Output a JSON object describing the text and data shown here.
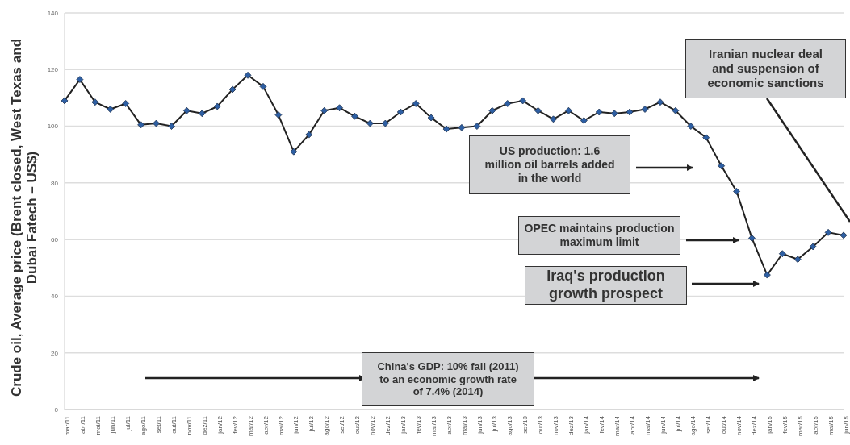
{
  "chart_data": {
    "type": "line",
    "ylabel": "Crude oil, Average price (Brent closed, West Texas and Dubai Fatech – US$)",
    "categories": [
      "mar/11",
      "abr/11",
      "mai/11",
      "jun/11",
      "jul/11",
      "ago/11",
      "set/11",
      "out/11",
      "nov/11",
      "dez/11",
      "jan/12",
      "fev/12",
      "mar/12",
      "abr/12",
      "mai/12",
      "jun/12",
      "jul/12",
      "ago/12",
      "set/12",
      "out/12",
      "nov/12",
      "dez/12",
      "jan/13",
      "fev/13",
      "mar/13",
      "abr/13",
      "mai/13",
      "jun/13",
      "jul/13",
      "ago/13",
      "set/13",
      "out/13",
      "nov/13",
      "dez/13",
      "jan/14",
      "fev/14",
      "mar/14",
      "abr/14",
      "mai/14",
      "jun/14",
      "jul/14",
      "ago/14",
      "set/14",
      "out/14",
      "nov/14",
      "dez/14",
      "jan/15",
      "fev/15",
      "mar/15",
      "abr/15",
      "mai/15",
      "jun/15"
    ],
    "series": [
      {
        "color": "#2e5fa3",
        "values": [
          109,
          116.5,
          108.5,
          106,
          108,
          100.5,
          101,
          100,
          105.5,
          104.5,
          107,
          113,
          118,
          114,
          104,
          91,
          97,
          105.5,
          106.5,
          103.5,
          101,
          101,
          105,
          108,
          103,
          99,
          99.5,
          100,
          105.5,
          108,
          109,
          105.5,
          102.5,
          105.5,
          102,
          105,
          104.5,
          105,
          106,
          108.5,
          105.5,
          100,
          96,
          86,
          77,
          60.5,
          47.5,
          55,
          53,
          57.5,
          62.5,
          61.5
        ]
      }
    ],
    "ylim": [
      0,
      140
    ],
    "yticks": [
      0,
      20,
      40,
      60,
      80,
      100,
      120,
      140
    ],
    "grid": "y",
    "marker": "diamond",
    "line_style": "solid",
    "annotations": [
      "Iranian nuclear deal and suspension of economic sanctions",
      "US production: 1.6 million oil barrels added in the world",
      "OPEC maintains production maximum limit",
      "Iraq's production growth prospect",
      "China's GDP: 10% fall (2011) to an economic growth rate of 7.4% (2014)"
    ]
  }
}
